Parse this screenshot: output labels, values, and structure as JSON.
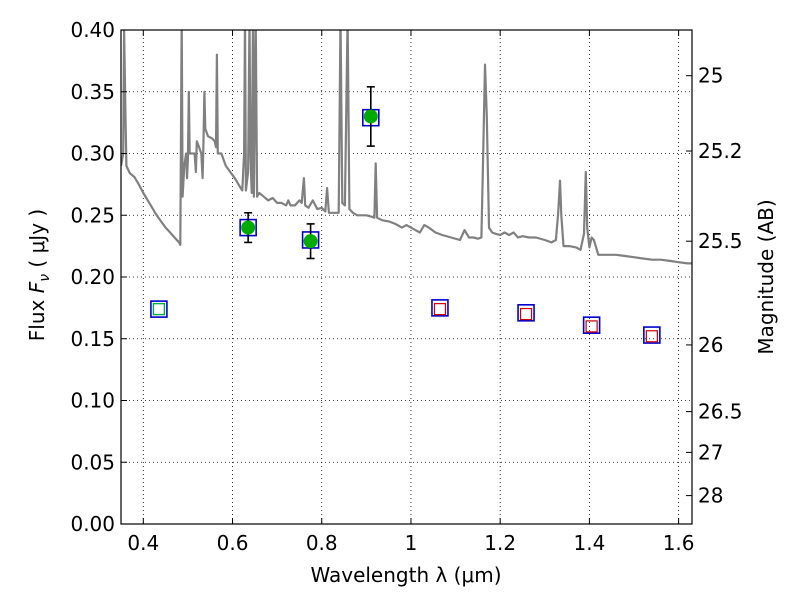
{
  "chart_data": {
    "type": "scatter",
    "xlabel": "Wavelength  λ (μm)",
    "ylabel_parts": [
      "Flux  ",
      "F",
      "ν",
      "  (  μJy  )"
    ],
    "y2label": "Magnitude (AB)",
    "xlim": [
      0.35,
      1.63
    ],
    "ylim": [
      0.0,
      0.4
    ],
    "grid": true,
    "x_ticks": [
      0.4,
      0.6,
      0.8,
      1.0,
      1.2,
      1.4,
      1.6
    ],
    "x_tick_labels": [
      "0.4",
      "0.6",
      "0.8",
      "1",
      "1.2",
      "1.4",
      "1.6"
    ],
    "y_ticks": [
      0.0,
      0.05,
      0.1,
      0.15,
      0.2,
      0.25,
      0.3,
      0.35,
      0.4
    ],
    "y_tick_labels": [
      "0.00",
      "0.05",
      "0.10",
      "0.15",
      "0.20",
      "0.25",
      "0.30",
      "0.35",
      "0.40"
    ],
    "y2_ticks": [
      {
        "label": "25",
        "flux": 0.363
      },
      {
        "label": "25.2",
        "flux": 0.302
      },
      {
        "label": "25.5",
        "flux": 0.229
      },
      {
        "label": "26",
        "flux": 0.145
      },
      {
        "label": "26.5",
        "flux": 0.091
      },
      {
        "label": "27",
        "flux": 0.058
      },
      {
        "label": "28",
        "flux": 0.023
      }
    ],
    "colors": {
      "spectrum": "#808080",
      "model_box": "#0000cc",
      "observed": "#00aa00",
      "optical_box": "#00aa44",
      "nir_box": "#cc0000",
      "errorbar": "#000000",
      "grid": "#000000"
    },
    "observed_points": [
      {
        "x": 0.635,
        "y": 0.24,
        "err": 0.012
      },
      {
        "x": 0.775,
        "y": 0.229,
        "err": 0.014
      },
      {
        "x": 0.91,
        "y": 0.33,
        "err": 0.024
      }
    ],
    "model_boxes": [
      {
        "x": 0.435,
        "y": 0.174
      },
      {
        "x": 0.635,
        "y": 0.24
      },
      {
        "x": 0.775,
        "y": 0.23
      },
      {
        "x": 0.91,
        "y": 0.329
      },
      {
        "x": 1.065,
        "y": 0.175
      },
      {
        "x": 1.258,
        "y": 0.171
      },
      {
        "x": 1.405,
        "y": 0.161
      },
      {
        "x": 1.54,
        "y": 0.153
      }
    ],
    "optical_limits": [
      {
        "x": 0.435,
        "y": 0.174
      }
    ],
    "nir_limits": [
      {
        "x": 1.065,
        "y": 0.174
      },
      {
        "x": 1.258,
        "y": 0.17
      },
      {
        "x": 1.405,
        "y": 0.16
      },
      {
        "x": 1.54,
        "y": 0.152
      }
    ],
    "spectrum": [
      [
        0.35,
        0.29
      ],
      [
        0.355,
        0.3
      ],
      [
        0.357,
        0.4
      ],
      [
        0.36,
        0.33
      ],
      [
        0.362,
        0.29
      ],
      [
        0.37,
        0.284
      ],
      [
        0.38,
        0.281
      ],
      [
        0.39,
        0.275
      ],
      [
        0.4,
        0.268
      ],
      [
        0.41,
        0.262
      ],
      [
        0.42,
        0.256
      ],
      [
        0.43,
        0.25
      ],
      [
        0.44,
        0.245
      ],
      [
        0.45,
        0.24
      ],
      [
        0.46,
        0.236
      ],
      [
        0.47,
        0.232
      ],
      [
        0.48,
        0.228
      ],
      [
        0.483,
        0.226
      ],
      [
        0.486,
        0.41
      ],
      [
        0.488,
        0.265
      ],
      [
        0.492,
        0.29
      ],
      [
        0.496,
        0.3
      ],
      [
        0.498,
        0.28
      ],
      [
        0.5,
        0.295
      ],
      [
        0.502,
        0.35
      ],
      [
        0.504,
        0.3
      ],
      [
        0.51,
        0.3
      ],
      [
        0.515,
        0.3
      ],
      [
        0.518,
        0.285
      ],
      [
        0.52,
        0.31
      ],
      [
        0.525,
        0.305
      ],
      [
        0.53,
        0.3
      ],
      [
        0.533,
        0.28
      ],
      [
        0.535,
        0.31
      ],
      [
        0.537,
        0.35
      ],
      [
        0.539,
        0.32
      ],
      [
        0.545,
        0.314
      ],
      [
        0.555,
        0.312
      ],
      [
        0.56,
        0.31
      ],
      [
        0.563,
        0.305
      ],
      [
        0.565,
        0.38
      ],
      [
        0.567,
        0.3
      ],
      [
        0.575,
        0.3
      ],
      [
        0.585,
        0.29
      ],
      [
        0.595,
        0.285
      ],
      [
        0.605,
        0.28
      ],
      [
        0.615,
        0.274
      ],
      [
        0.622,
        0.27
      ],
      [
        0.626,
        0.3
      ],
      [
        0.628,
        0.41
      ],
      [
        0.63,
        0.27
      ],
      [
        0.635,
        0.285
      ],
      [
        0.638,
        0.41
      ],
      [
        0.64,
        0.3
      ],
      [
        0.643,
        0.268
      ],
      [
        0.646,
        0.41
      ],
      [
        0.648,
        0.265
      ],
      [
        0.652,
        0.41
      ],
      [
        0.655,
        0.265
      ],
      [
        0.66,
        0.268
      ],
      [
        0.67,
        0.265
      ],
      [
        0.68,
        0.262
      ],
      [
        0.69,
        0.264
      ],
      [
        0.7,
        0.26
      ],
      [
        0.71,
        0.26
      ],
      [
        0.72,
        0.258
      ],
      [
        0.725,
        0.262
      ],
      [
        0.73,
        0.258
      ],
      [
        0.74,
        0.258
      ],
      [
        0.75,
        0.262
      ],
      [
        0.755,
        0.26
      ],
      [
        0.76,
        0.28
      ],
      [
        0.763,
        0.258
      ],
      [
        0.77,
        0.256
      ],
      [
        0.78,
        0.262
      ],
      [
        0.79,
        0.255
      ],
      [
        0.8,
        0.256
      ],
      [
        0.808,
        0.253
      ],
      [
        0.812,
        0.272
      ],
      [
        0.816,
        0.252
      ],
      [
        0.83,
        0.252
      ],
      [
        0.838,
        0.252
      ],
      [
        0.842,
        0.41
      ],
      [
        0.846,
        0.26
      ],
      [
        0.852,
        0.258
      ],
      [
        0.858,
        0.41
      ],
      [
        0.862,
        0.255
      ],
      [
        0.87,
        0.252
      ],
      [
        0.88,
        0.25
      ],
      [
        0.89,
        0.25
      ],
      [
        0.9,
        0.25
      ],
      [
        0.91,
        0.249
      ],
      [
        0.918,
        0.248
      ],
      [
        0.921,
        0.292
      ],
      [
        0.924,
        0.248
      ],
      [
        0.935,
        0.246
      ],
      [
        0.95,
        0.245
      ],
      [
        0.965,
        0.243
      ],
      [
        0.98,
        0.24
      ],
      [
        0.99,
        0.242
      ],
      [
        1.0,
        0.24
      ],
      [
        1.01,
        0.238
      ],
      [
        1.02,
        0.236
      ],
      [
        1.03,
        0.242
      ],
      [
        1.04,
        0.24
      ],
      [
        1.055,
        0.236
      ],
      [
        1.07,
        0.234
      ],
      [
        1.09,
        0.232
      ],
      [
        1.11,
        0.23
      ],
      [
        1.12,
        0.238
      ],
      [
        1.13,
        0.232
      ],
      [
        1.14,
        0.232
      ],
      [
        1.15,
        0.231
      ],
      [
        1.158,
        0.232
      ],
      [
        1.162,
        0.3
      ],
      [
        1.166,
        0.372
      ],
      [
        1.17,
        0.33
      ],
      [
        1.175,
        0.24
      ],
      [
        1.182,
        0.236
      ],
      [
        1.19,
        0.235
      ],
      [
        1.2,
        0.234
      ],
      [
        1.21,
        0.236
      ],
      [
        1.22,
        0.234
      ],
      [
        1.23,
        0.236
      ],
      [
        1.24,
        0.232
      ],
      [
        1.25,
        0.233
      ],
      [
        1.265,
        0.232
      ],
      [
        1.28,
        0.232
      ],
      [
        1.3,
        0.23
      ],
      [
        1.315,
        0.228
      ],
      [
        1.325,
        0.23
      ],
      [
        1.33,
        0.252
      ],
      [
        1.334,
        0.278
      ],
      [
        1.337,
        0.25
      ],
      [
        1.342,
        0.225
      ],
      [
        1.355,
        0.225
      ],
      [
        1.37,
        0.224
      ],
      [
        1.38,
        0.222
      ],
      [
        1.388,
        0.235
      ],
      [
        1.392,
        0.285
      ],
      [
        1.395,
        0.24
      ],
      [
        1.4,
        0.224
      ],
      [
        1.405,
        0.232
      ],
      [
        1.41,
        0.23
      ],
      [
        1.42,
        0.218
      ],
      [
        1.44,
        0.218
      ],
      [
        1.46,
        0.218
      ],
      [
        1.48,
        0.217
      ],
      [
        1.5,
        0.216
      ],
      [
        1.52,
        0.215
      ],
      [
        1.54,
        0.214
      ],
      [
        1.56,
        0.214
      ],
      [
        1.58,
        0.213
      ],
      [
        1.6,
        0.212
      ],
      [
        1.62,
        0.211
      ],
      [
        1.63,
        0.211
      ]
    ]
  }
}
